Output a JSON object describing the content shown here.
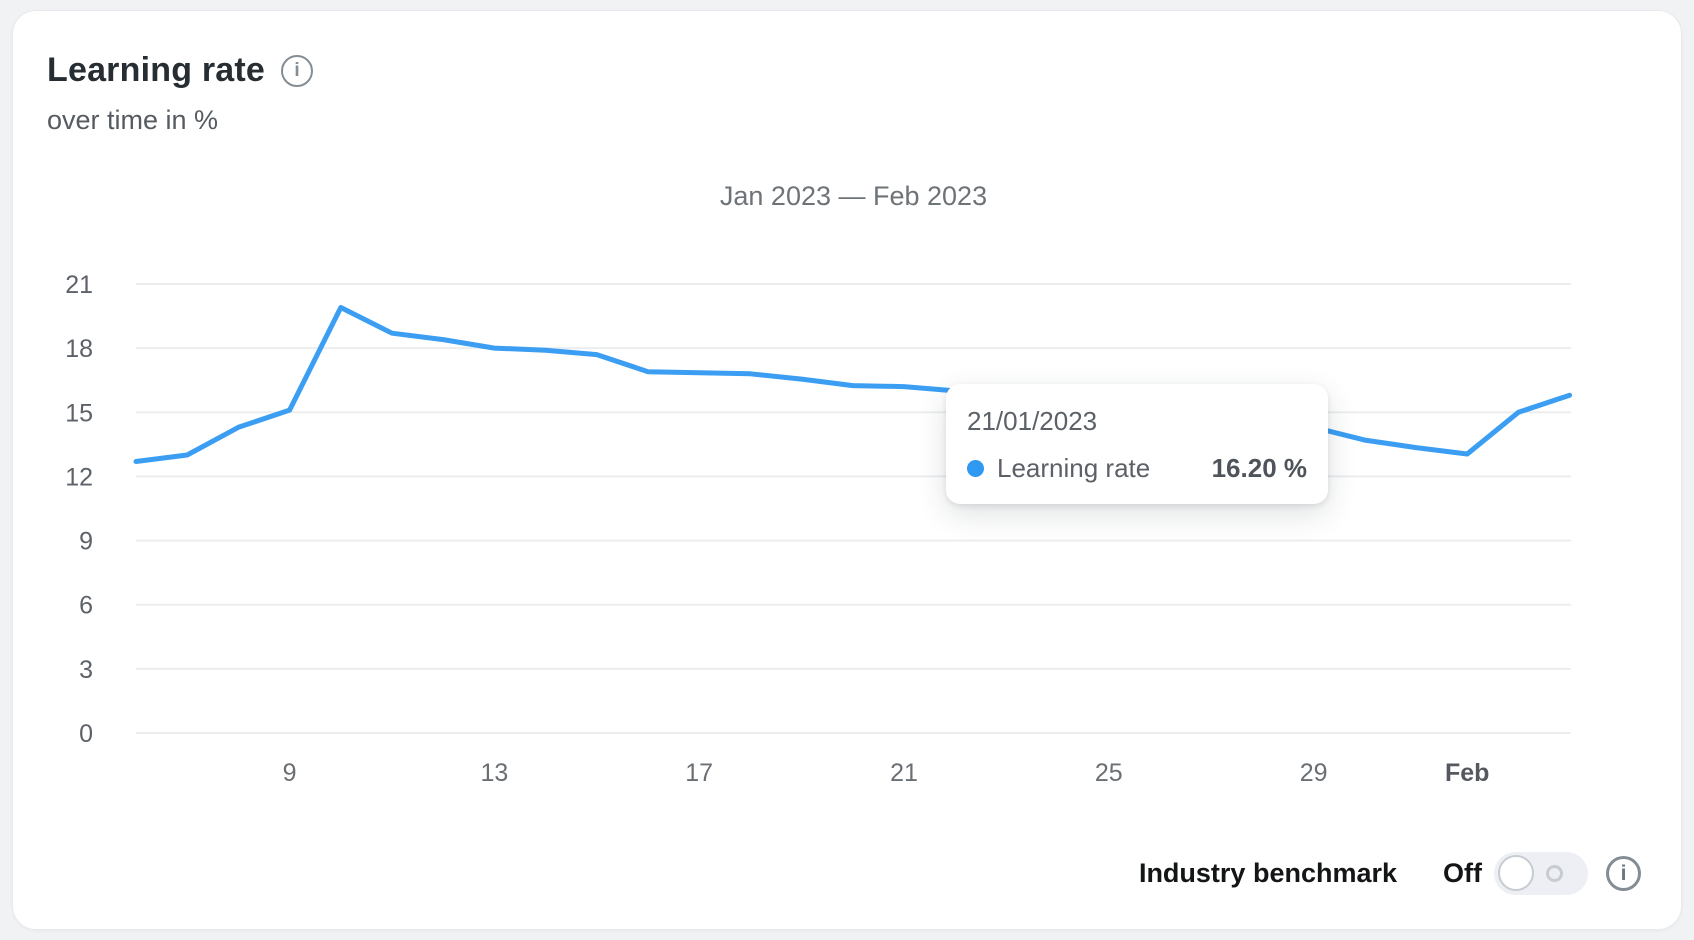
{
  "card": {
    "title": "Learning rate",
    "subtitle": "over time in %",
    "title_info_icon": "info-icon"
  },
  "chart_data": {
    "type": "line",
    "title": "Jan 2023 — Feb 2023",
    "unit": "%",
    "grid": true,
    "line_color": "#3b9ef2",
    "gridline_color": "#ebedef",
    "ylim": [
      0,
      21
    ],
    "y_ticks": [
      0,
      3,
      6,
      9,
      12,
      15,
      18,
      21
    ],
    "x_ticks": [
      {
        "label": "9",
        "day": 9,
        "bold": false
      },
      {
        "label": "13",
        "day": 13,
        "bold": false
      },
      {
        "label": "17",
        "day": 17,
        "bold": false
      },
      {
        "label": "21",
        "day": 21,
        "bold": false
      },
      {
        "label": "25",
        "day": 25,
        "bold": false
      },
      {
        "label": "29",
        "day": 29,
        "bold": false
      },
      {
        "label": "Feb",
        "day": 32,
        "bold": true
      }
    ],
    "series": [
      {
        "name": "Learning rate",
        "color": "#3b9ef2",
        "x": [
          "06/01/2023",
          "07/01/2023",
          "08/01/2023",
          "09/01/2023",
          "10/01/2023",
          "11/01/2023",
          "12/01/2023",
          "13/01/2023",
          "14/01/2023",
          "15/01/2023",
          "16/01/2023",
          "17/01/2023",
          "18/01/2023",
          "19/01/2023",
          "20/01/2023",
          "21/01/2023",
          "22/01/2023",
          "23/01/2023",
          "24/01/2023",
          "25/01/2023",
          "26/01/2023",
          "27/01/2023",
          "28/01/2023",
          "29/01/2023",
          "30/01/2023",
          "31/01/2023",
          "01/02/2023",
          "02/02/2023",
          "03/02/2023"
        ],
        "values": [
          12.7,
          13.0,
          14.3,
          15.1,
          19.9,
          18.7,
          18.4,
          18.0,
          17.9,
          17.7,
          16.9,
          16.85,
          16.8,
          16.55,
          16.25,
          16.2,
          16.0,
          15.8,
          15.5,
          15.2,
          15.0,
          14.7,
          14.5,
          14.3,
          13.7,
          13.35,
          13.05,
          15.0,
          15.8
        ]
      }
    ]
  },
  "tooltip": {
    "date": "21/01/2023",
    "series_label": "Learning rate",
    "value": "16.20 %",
    "dot_color": "#2f98f1"
  },
  "controls": {
    "benchmark_label": "Industry benchmark",
    "toggle_state": "Off"
  },
  "icons": {
    "info_glyph": "i"
  }
}
